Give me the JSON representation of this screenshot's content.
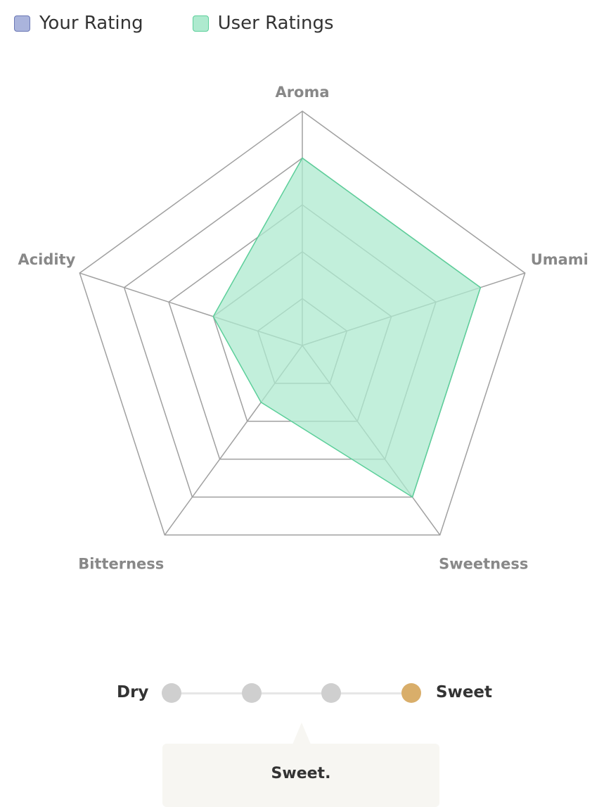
{
  "legend": {
    "items": [
      {
        "label": "Your Rating",
        "fill": "#aab4dc",
        "border": "#6b78b5"
      },
      {
        "label": "User Ratings",
        "fill": "#aeeacf",
        "border": "#5ccf9a"
      }
    ]
  },
  "chart_data": {
    "type": "radar",
    "axes": [
      "Aroma",
      "Umami",
      "Sweetness",
      "Bitterness",
      "Acidity"
    ],
    "range": [
      0,
      5
    ],
    "levels": 5,
    "grid": true,
    "series": [
      {
        "name": "Your Rating",
        "values": [
          0,
          0,
          0,
          0,
          0
        ],
        "fill": "#aab4dc",
        "stroke": "#6b78b5"
      },
      {
        "name": "User Ratings",
        "values": [
          4,
          4,
          4,
          1.5,
          2
        ],
        "fill": "#aeeacf",
        "stroke": "#5ccf9a"
      }
    ]
  },
  "scale": {
    "left_label": "Dry",
    "right_label": "Sweet",
    "steps": 4,
    "selected_index": 3,
    "selected_color": "#d9ae6a",
    "tooltip_text": "Sweet."
  }
}
